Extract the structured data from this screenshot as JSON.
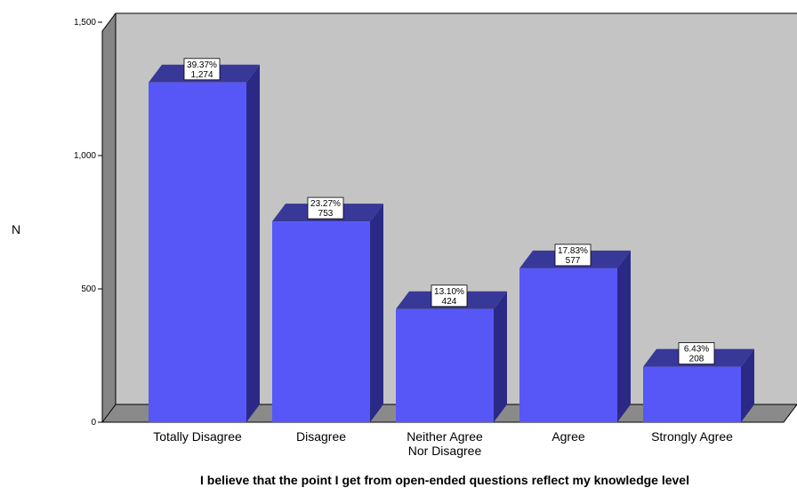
{
  "chart_data": {
    "type": "bar",
    "ylabel": "N",
    "xlabel": "I believe that the point I get from open-ended questions reflect my knowledge level",
    "ylim": [
      0,
      1600
    ],
    "yticks": [
      "0",
      "500",
      "1,000",
      "1,500"
    ],
    "ytick_values": [
      0,
      500,
      1000,
      1500
    ],
    "categories": [
      [
        "Totally Disagree"
      ],
      [
        "Disagree"
      ],
      [
        "Neither Agree",
        "Nor Disagree"
      ],
      [
        "Agree"
      ],
      [
        "Strongly Agree"
      ]
    ],
    "values": [
      1274,
      753,
      424,
      577,
      208
    ],
    "percent_labels": [
      "39.37%",
      "23.27%",
      "13.10%",
      "17.83%",
      "6.43%"
    ],
    "count_labels": [
      "1,274",
      "753",
      "424",
      "577",
      "208"
    ],
    "colors": {
      "bar_front": "#5757f7",
      "bar_side": "#2a2a86",
      "bar_top": "#383898",
      "wall": "#c4c4c4",
      "wall_left": "#858585",
      "floor": "#8a8a8a"
    }
  }
}
